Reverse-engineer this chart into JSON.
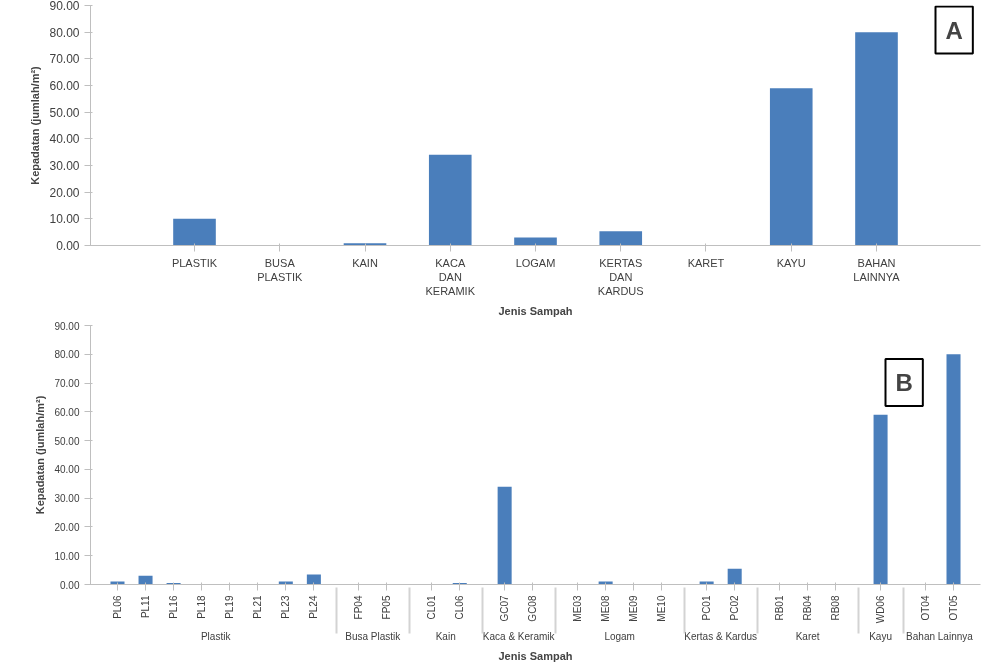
{
  "chart_data": [
    {
      "type": "bar",
      "title": "A",
      "xlabel": "Jenis Sampah",
      "ylabel": "Kepadatan (jumlah/m²)",
      "color": "#4a7ebb",
      "categories": [
        "PLASTIK",
        "BUSA PLASTIK",
        "KAIN",
        "KACA DAN KERAMIK",
        "LOGAM",
        "KERTAS DAN KARDUS",
        "KARET",
        "KAYU",
        "BAHAN LAINNYA"
      ],
      "values": [
        10,
        0,
        0.8,
        34,
        3,
        5.3,
        0,
        59,
        80
      ],
      "ylim": [
        0,
        90
      ],
      "yticks": [
        {
          "value": 0,
          "label": "0.00"
        },
        {
          "value": 10,
          "label": "10.00"
        },
        {
          "value": 20,
          "label": "20.00"
        },
        {
          "value": 30,
          "label": "30.00"
        },
        {
          "value": 40,
          "label": "40.00"
        },
        {
          "value": 50,
          "label": "50.00"
        },
        {
          "value": 60,
          "label": "60.00"
        },
        {
          "value": 70,
          "label": "70.00"
        },
        {
          "value": 80,
          "label": "80.00"
        },
        {
          "value": 90,
          "label": "90.00"
        }
      ],
      "grid": false
    },
    {
      "type": "bar",
      "title": "B",
      "xlabel": "Jenis Sampah",
      "ylabel": "Kepadatan (jumlah/m²)",
      "color": "#4a7ebb",
      "categories": [
        "PL06",
        "PL11",
        "PL16",
        "PL18",
        "PL19",
        "PL21",
        "PL23",
        "PL24",
        "FP04",
        "FP05",
        "CL01",
        "CL06",
        "GC07",
        "GC08",
        "ME03",
        "ME08",
        "ME09",
        "ME10",
        "PC01",
        "PC02",
        "RB01",
        "RB04",
        "RB08",
        "WD06",
        "OT04",
        "OT05"
      ],
      "values": [
        1,
        3,
        0.5,
        0,
        0,
        0,
        1,
        3.5,
        0,
        0,
        0,
        0.5,
        34,
        0,
        0,
        1,
        0,
        0,
        1,
        5.5,
        0,
        0,
        0,
        59,
        0,
        80
      ],
      "annotations": [
        "Plastik",
        "Busa Plastik",
        "Kain",
        "Kaca & Keramik",
        "Logam",
        "Kertas & Kardus",
        "Karet",
        "Kayu",
        "Bahan Lainnya"
      ],
      "ylim": [
        0,
        90
      ],
      "yticks": [
        {
          "value": 0,
          "label": "0.00"
        },
        {
          "value": 10,
          "label": "10.00"
        },
        {
          "value": 20,
          "label": "20.00"
        },
        {
          "value": 30,
          "label": "30.00"
        },
        {
          "value": 40,
          "label": "40.00"
        },
        {
          "value": 50,
          "label": "50.00"
        },
        {
          "value": 60,
          "label": "60.00"
        },
        {
          "value": 70,
          "label": "70.00"
        },
        {
          "value": 80,
          "label": "80.00"
        },
        {
          "value": 90,
          "label": "90.00"
        }
      ],
      "grid": false
    }
  ]
}
